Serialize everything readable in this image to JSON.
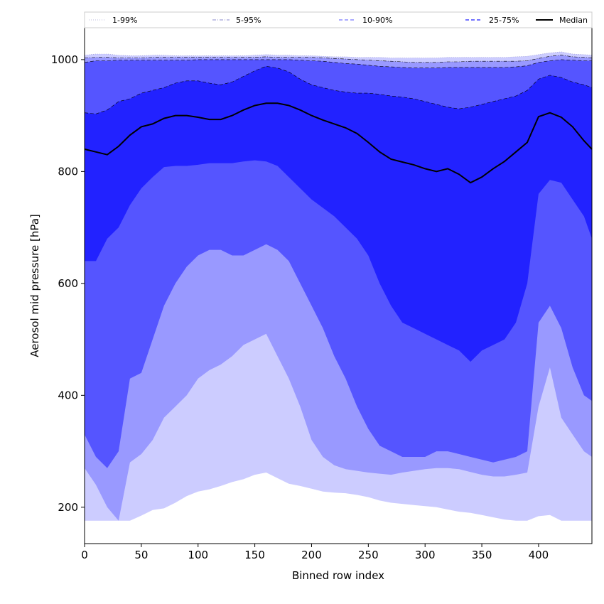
{
  "chart_data": {
    "type": "area",
    "title": "",
    "xlabel": "Binned row index",
    "ylabel": "Aerosol mid pressure [hPa]",
    "xlim": [
      0,
      447
    ],
    "ylim": [
      135,
      1057
    ],
    "xticks": [
      0,
      50,
      100,
      150,
      200,
      250,
      300,
      350,
      400
    ],
    "yticks": [
      200,
      400,
      600,
      800,
      1000
    ],
    "grid": false,
    "legend_position": "top",
    "x": [
      0,
      10,
      20,
      30,
      40,
      50,
      60,
      70,
      80,
      90,
      100,
      110,
      120,
      130,
      140,
      150,
      160,
      170,
      180,
      190,
      200,
      210,
      220,
      230,
      240,
      250,
      260,
      270,
      280,
      290,
      300,
      310,
      320,
      330,
      340,
      350,
      360,
      370,
      380,
      390,
      400,
      410,
      420,
      430,
      440,
      447
    ],
    "series": [
      {
        "name": "1-99%",
        "color": "#ccccff",
        "linestyle": "dotted",
        "lower": [
          176,
          176,
          176,
          176,
          176,
          185,
          195,
          198,
          208,
          220,
          228,
          232,
          238,
          245,
          250,
          258,
          262,
          252,
          242,
          238,
          233,
          228,
          226,
          225,
          222,
          218,
          212,
          208,
          206,
          204,
          202,
          200,
          196,
          192,
          190,
          186,
          182,
          178,
          176,
          176,
          184,
          186,
          176,
          176,
          176,
          176
        ],
        "upper": [
          1008,
          1010,
          1010,
          1008,
          1007,
          1007,
          1008,
          1008,
          1007,
          1007,
          1007,
          1007,
          1007,
          1007,
          1007,
          1008,
          1009,
          1008,
          1008,
          1007,
          1007,
          1006,
          1005,
          1005,
          1004,
          1004,
          1004,
          1003,
          1003,
          1003,
          1003,
          1003,
          1004,
          1004,
          1004,
          1004,
          1004,
          1004,
          1005,
          1006,
          1009,
          1012,
          1014,
          1010,
          1009,
          1008
        ]
      },
      {
        "name": "5-95%",
        "color": "#9999ff",
        "linestyle": "dashdot",
        "lower": [
          270,
          240,
          200,
          176,
          280,
          295,
          320,
          360,
          380,
          400,
          430,
          445,
          455,
          470,
          490,
          500,
          510,
          470,
          430,
          380,
          320,
          290,
          275,
          268,
          265,
          262,
          260,
          258,
          262,
          265,
          268,
          270,
          270,
          268,
          263,
          258,
          255,
          255,
          258,
          262,
          380,
          450,
          360,
          330,
          300,
          290
        ],
        "upper": [
          1003,
          1004,
          1004,
          1003,
          1003,
          1003,
          1004,
          1004,
          1004,
          1004,
          1004,
          1004,
          1004,
          1004,
          1004,
          1004,
          1005,
          1004,
          1004,
          1004,
          1004,
          1003,
          1002,
          1001,
          1000,
          999,
          998,
          997,
          996,
          995,
          995,
          995,
          996,
          996,
          997,
          997,
          997,
          997,
          997,
          998,
          1002,
          1006,
          1008,
          1005,
          1004,
          1003
        ]
      },
      {
        "name": "10-90%",
        "color": "#5555ff",
        "linestyle": "dashed",
        "lower": [
          330,
          290,
          270,
          300,
          430,
          440,
          500,
          560,
          600,
          630,
          650,
          660,
          660,
          650,
          650,
          660,
          670,
          660,
          640,
          600,
          560,
          520,
          470,
          430,
          380,
          340,
          310,
          300,
          290,
          290,
          290,
          300,
          300,
          295,
          290,
          285,
          280,
          285,
          290,
          300,
          530,
          560,
          520,
          450,
          400,
          390
        ],
        "upper": [
          995,
          998,
          998,
          999,
          999,
          999,
          999,
          999,
          999,
          999,
          1000,
          1000,
          1000,
          1000,
          1000,
          1000,
          1000,
          1000,
          1000,
          999,
          998,
          997,
          995,
          993,
          992,
          990,
          988,
          987,
          986,
          985,
          985,
          985,
          986,
          986,
          986,
          986,
          986,
          986,
          987,
          989,
          995,
          998,
          1000,
          999,
          998,
          998
        ]
      },
      {
        "name": "25-75%",
        "color": "#2222ff",
        "linestyle": "dashed",
        "lower": [
          640,
          640,
          680,
          700,
          740,
          770,
          790,
          808,
          810,
          810,
          812,
          815,
          815,
          815,
          818,
          820,
          818,
          810,
          790,
          770,
          750,
          735,
          720,
          700,
          680,
          650,
          600,
          560,
          530,
          520,
          510,
          500,
          490,
          480,
          460,
          480,
          490,
          500,
          530,
          600,
          760,
          785,
          780,
          750,
          720,
          680
        ],
        "upper": [
          905,
          903,
          910,
          925,
          930,
          940,
          945,
          950,
          958,
          962,
          962,
          958,
          955,
          960,
          970,
          980,
          988,
          985,
          978,
          965,
          955,
          950,
          945,
          942,
          940,
          940,
          938,
          935,
          933,
          930,
          925,
          920,
          915,
          912,
          915,
          920,
          925,
          930,
          935,
          945,
          965,
          972,
          968,
          960,
          955,
          950
        ]
      },
      {
        "name": "Median",
        "color": "#000000",
        "linestyle": "solid",
        "values": [
          840,
          835,
          830,
          845,
          865,
          880,
          885,
          895,
          900,
          900,
          897,
          893,
          893,
          900,
          910,
          918,
          922,
          922,
          918,
          910,
          900,
          892,
          885,
          878,
          868,
          852,
          835,
          822,
          817,
          812,
          805,
          800,
          805,
          795,
          780,
          790,
          805,
          818,
          835,
          852,
          898,
          905,
          897,
          880,
          855,
          840
        ]
      }
    ]
  }
}
